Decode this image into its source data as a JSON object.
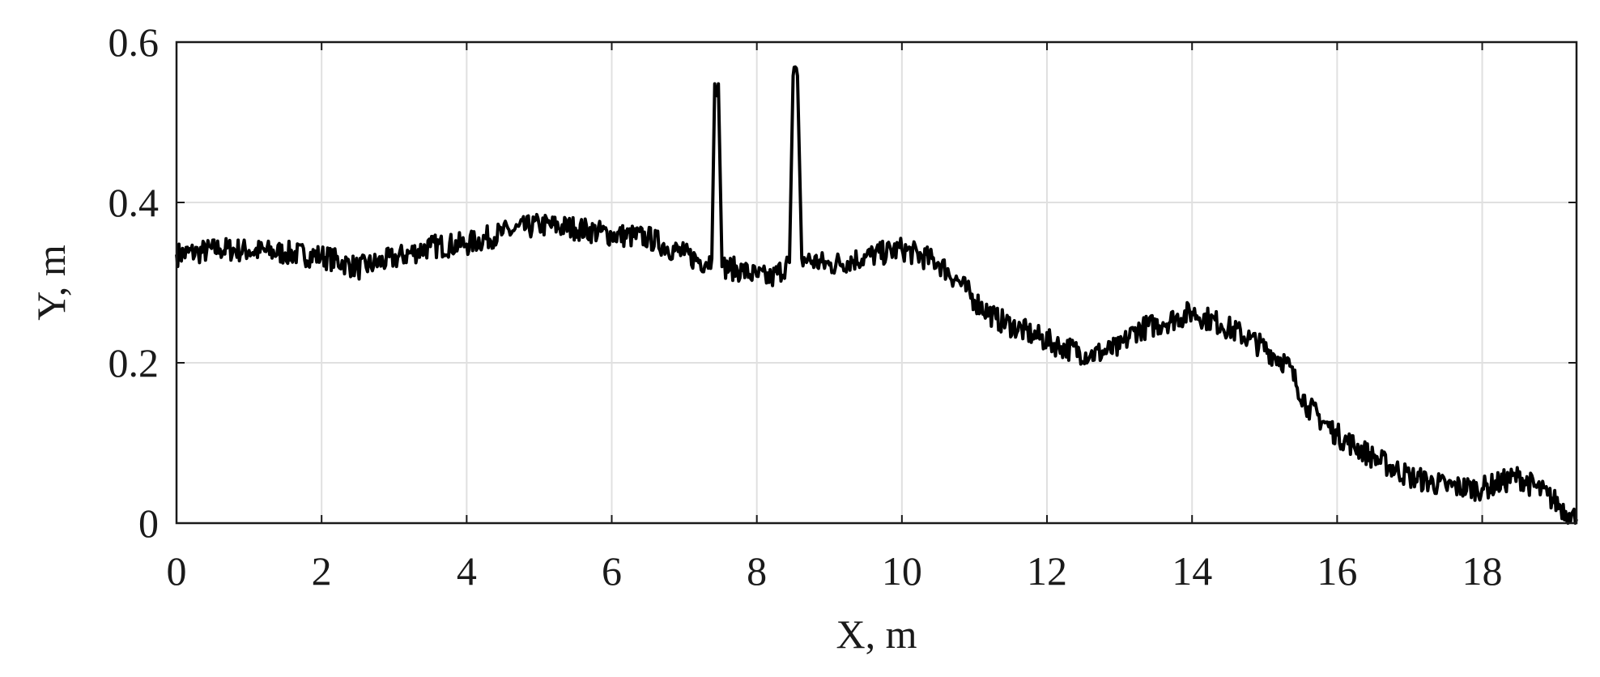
{
  "chart_data": {
    "type": "line",
    "title": "",
    "xlabel": "X, m",
    "ylabel": "Y, m",
    "xlim": [
      0,
      19.3
    ],
    "ylim": [
      0,
      0.6
    ],
    "xticks": [
      0,
      2,
      4,
      6,
      8,
      10,
      12,
      14,
      16,
      18
    ],
    "yticks": [
      0,
      0.2,
      0.4,
      0.6
    ],
    "xtick_labels": [
      "0",
      "2",
      "4",
      "6",
      "8",
      "10",
      "12",
      "14",
      "16",
      "18"
    ],
    "ytick_labels": [
      "0",
      "0.2",
      "0.4",
      "0.6"
    ],
    "grid": true,
    "colors": {
      "line": "#000000",
      "grid": "#e0e0e0",
      "axes": "#1a1a1a"
    },
    "series": [
      {
        "color": "#000000",
        "points": [
          [
            0.0,
            0.335
          ],
          [
            0.3,
            0.338
          ],
          [
            0.6,
            0.342
          ],
          [
            1.0,
            0.34
          ],
          [
            1.5,
            0.337
          ],
          [
            2.0,
            0.333
          ],
          [
            2.3,
            0.325
          ],
          [
            2.5,
            0.318
          ],
          [
            3.0,
            0.33
          ],
          [
            3.5,
            0.345
          ],
          [
            4.0,
            0.348
          ],
          [
            4.5,
            0.362
          ],
          [
            5.0,
            0.372
          ],
          [
            5.5,
            0.368
          ],
          [
            6.0,
            0.36
          ],
          [
            6.5,
            0.356
          ],
          [
            7.0,
            0.335
          ],
          [
            7.3,
            0.325
          ],
          [
            7.38,
            0.33
          ],
          [
            7.42,
            0.548
          ],
          [
            7.47,
            0.548
          ],
          [
            7.52,
            0.32
          ],
          [
            7.8,
            0.315
          ],
          [
            8.0,
            0.308
          ],
          [
            8.2,
            0.305
          ],
          [
            8.45,
            0.325
          ],
          [
            8.5,
            0.558
          ],
          [
            8.56,
            0.558
          ],
          [
            8.62,
            0.33
          ],
          [
            9.0,
            0.322
          ],
          [
            9.5,
            0.332
          ],
          [
            10.0,
            0.342
          ],
          [
            10.5,
            0.325
          ],
          [
            10.8,
            0.3
          ],
          [
            11.0,
            0.278
          ],
          [
            11.3,
            0.255
          ],
          [
            11.8,
            0.235
          ],
          [
            12.2,
            0.22
          ],
          [
            12.6,
            0.21
          ],
          [
            13.0,
            0.218
          ],
          [
            13.2,
            0.24
          ],
          [
            13.6,
            0.25
          ],
          [
            14.0,
            0.263
          ],
          [
            14.4,
            0.248
          ],
          [
            14.8,
            0.23
          ],
          [
            15.3,
            0.2
          ],
          [
            15.6,
            0.145
          ],
          [
            16.0,
            0.11
          ],
          [
            16.5,
            0.082
          ],
          [
            17.0,
            0.058
          ],
          [
            17.5,
            0.046
          ],
          [
            18.0,
            0.043
          ],
          [
            18.5,
            0.058
          ],
          [
            18.9,
            0.035
          ],
          [
            19.2,
            0.012
          ],
          [
            19.3,
            0.005
          ]
        ]
      }
    ]
  }
}
